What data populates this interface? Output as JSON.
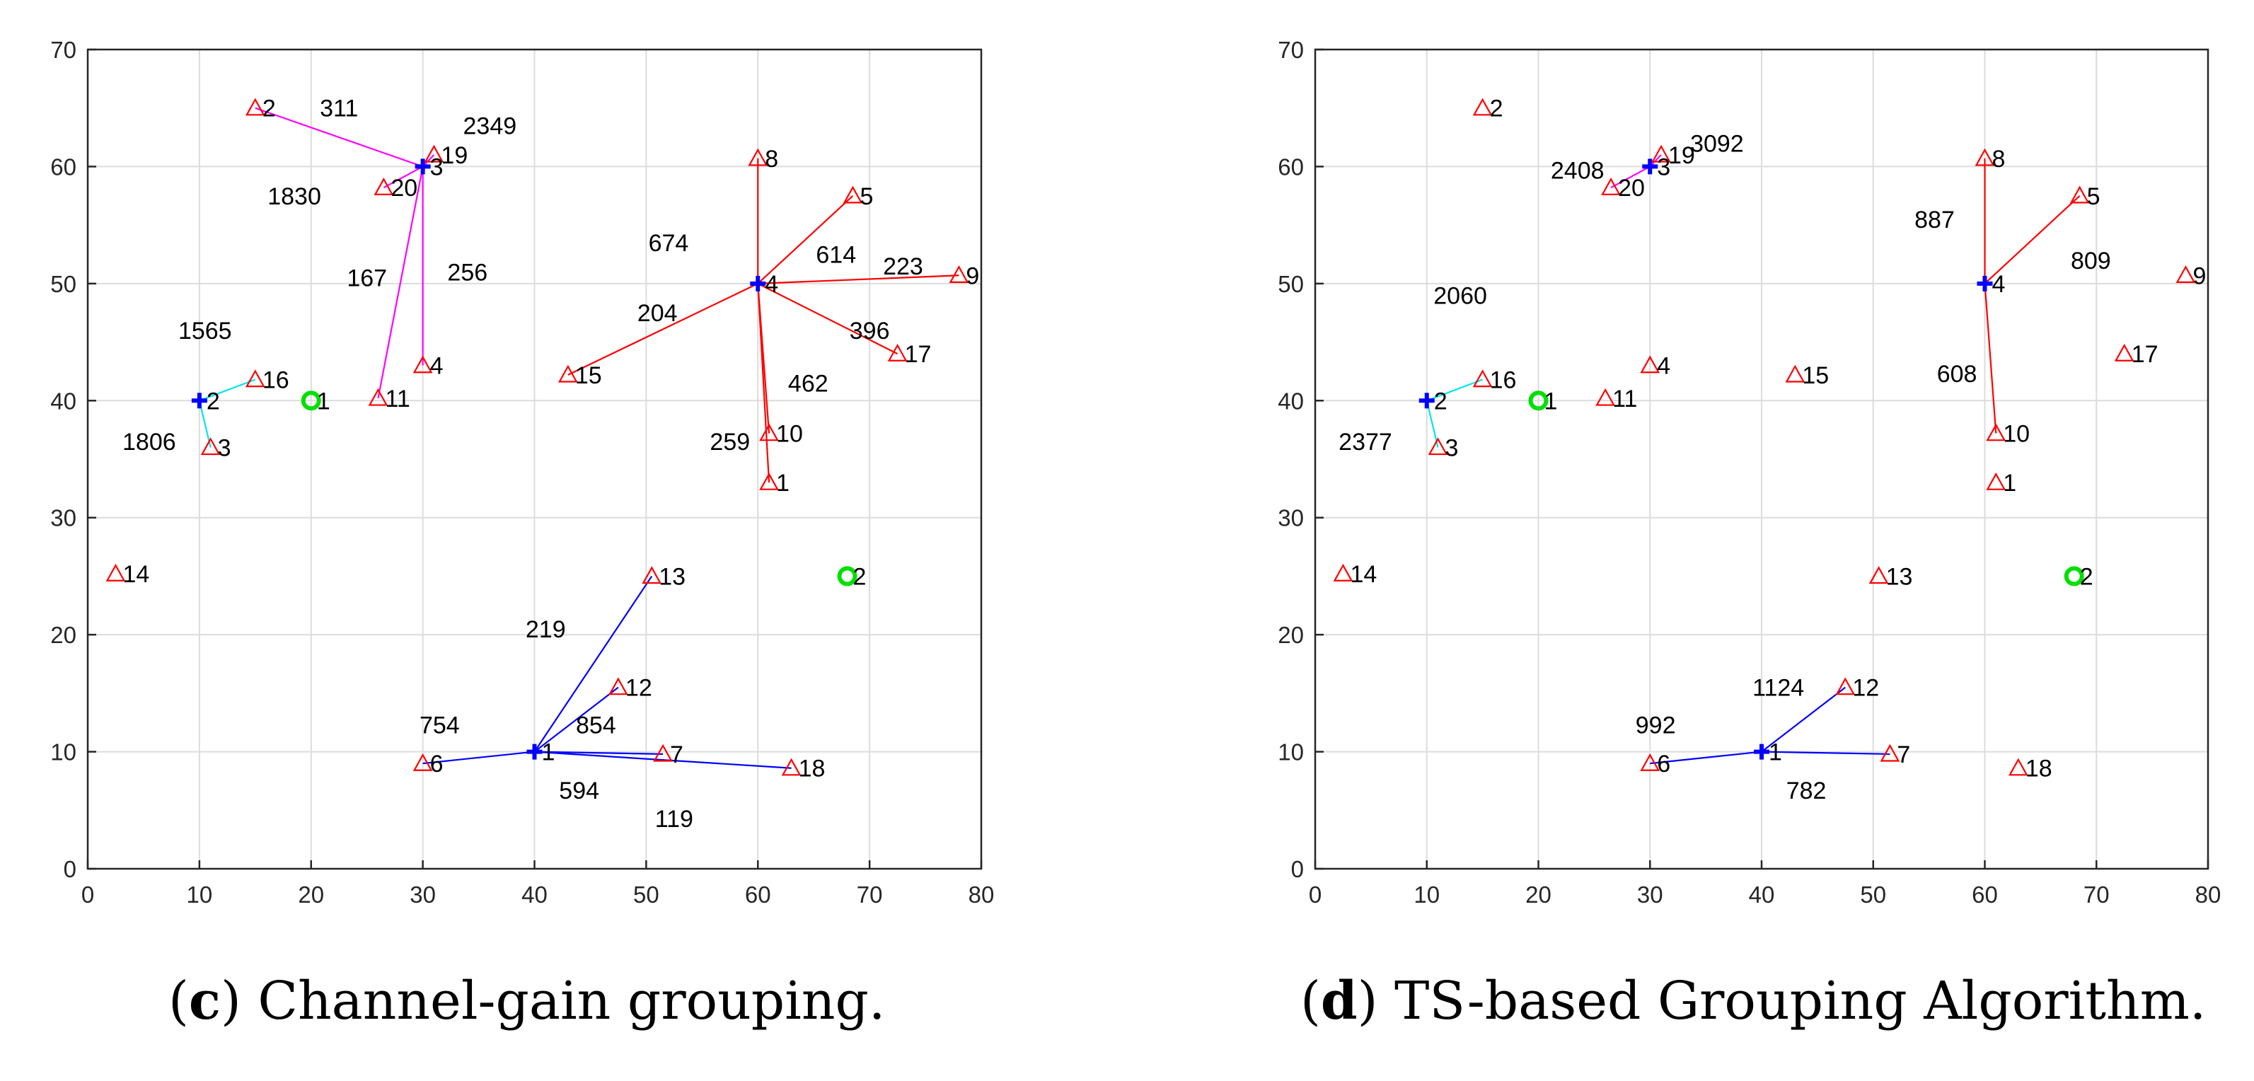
{
  "colors": {
    "user": "#ff0000",
    "bs": "#00e000",
    "head_point": "#0000ff",
    "groups": [
      "#0000ff",
      "#00e5ee",
      "#ff00ff",
      "#ff0000"
    ],
    "grid": "#dcdcdc",
    "axis": "#262626"
  },
  "chart_data": [
    {
      "id": "c",
      "type": "scatter",
      "title": "",
      "xlabel": "",
      "ylabel": "",
      "xlim": [
        0,
        80
      ],
      "ylim": [
        0,
        70
      ],
      "xticks": [
        0,
        10,
        20,
        30,
        40,
        50,
        60,
        70,
        80
      ],
      "yticks": [
        0,
        10,
        20,
        30,
        40,
        50,
        60,
        70
      ],
      "grid": true,
      "users": [
        {
          "label": "1",
          "x": 61,
          "y": 33
        },
        {
          "label": "2",
          "x": 15,
          "y": 65
        },
        {
          "label": "3",
          "x": 11,
          "y": 36
        },
        {
          "label": "4",
          "x": 30,
          "y": 43
        },
        {
          "label": "5",
          "x": 68.5,
          "y": 57.5
        },
        {
          "label": "6",
          "x": 30,
          "y": 9
        },
        {
          "label": "7",
          "x": 51.5,
          "y": 9.8
        },
        {
          "label": "8",
          "x": 60,
          "y": 60.7
        },
        {
          "label": "9",
          "x": 78,
          "y": 50.7
        },
        {
          "label": "10",
          "x": 61,
          "y": 37.2
        },
        {
          "label": "11",
          "x": 26,
          "y": 40.2
        },
        {
          "label": "12",
          "x": 47.5,
          "y": 15.5
        },
        {
          "label": "13",
          "x": 50.5,
          "y": 25
        },
        {
          "label": "14",
          "x": 2.5,
          "y": 25.2
        },
        {
          "label": "15",
          "x": 43,
          "y": 42.2
        },
        {
          "label": "16",
          "x": 15,
          "y": 41.8
        },
        {
          "label": "17",
          "x": 72.5,
          "y": 44
        },
        {
          "label": "18",
          "x": 63,
          "y": 8.6
        },
        {
          "label": "19",
          "x": 31,
          "y": 61
        },
        {
          "label": "20",
          "x": 26.5,
          "y": 58.2
        }
      ],
      "base_stations": [
        {
          "label": "1",
          "x": 20,
          "y": 40
        },
        {
          "label": "2",
          "x": 68,
          "y": 25
        }
      ],
      "group_heads": [
        {
          "label": "1",
          "x": 40,
          "y": 10,
          "color": 0
        },
        {
          "label": "2",
          "x": 10,
          "y": 40,
          "color": 1
        },
        {
          "label": "3",
          "x": 30,
          "y": 60,
          "color": 2
        },
        {
          "label": "4",
          "x": 60,
          "y": 50,
          "color": 3
        }
      ],
      "links": [
        {
          "head": 0,
          "users": [
            "6",
            "7",
            "12",
            "13",
            "18"
          ]
        },
        {
          "head": 1,
          "users": [
            "3",
            "16"
          ]
        },
        {
          "head": 2,
          "users": [
            "2",
            "4",
            "11",
            "19",
            "20"
          ]
        },
        {
          "head": 3,
          "users": [
            "1",
            "5",
            "8",
            "9",
            "10",
            "15",
            "17"
          ]
        }
      ],
      "annotations": [
        {
          "text": "311",
          "x": 22.5,
          "y": 65
        },
        {
          "text": "2349",
          "x": 36,
          "y": 63.5
        },
        {
          "text": "1830",
          "x": 18.5,
          "y": 57.5
        },
        {
          "text": "167",
          "x": 25,
          "y": 50.5
        },
        {
          "text": "256",
          "x": 34,
          "y": 51
        },
        {
          "text": "1565",
          "x": 10.5,
          "y": 46
        },
        {
          "text": "1806",
          "x": 5.5,
          "y": 36.5
        },
        {
          "text": "674",
          "x": 52,
          "y": 53.5
        },
        {
          "text": "614",
          "x": 67,
          "y": 52.5
        },
        {
          "text": "223",
          "x": 73,
          "y": 51.5
        },
        {
          "text": "204",
          "x": 51,
          "y": 47.5
        },
        {
          "text": "396",
          "x": 70,
          "y": 46
        },
        {
          "text": "462",
          "x": 64.5,
          "y": 41.5
        },
        {
          "text": "259",
          "x": 57.5,
          "y": 36.5
        },
        {
          "text": "219",
          "x": 41,
          "y": 20.5
        },
        {
          "text": "754",
          "x": 31.5,
          "y": 12.3
        },
        {
          "text": "854",
          "x": 45.5,
          "y": 12.3
        },
        {
          "text": "594",
          "x": 44,
          "y": 6.7
        },
        {
          "text": "119",
          "x": 52.5,
          "y": 4.3
        }
      ]
    },
    {
      "id": "d",
      "type": "scatter",
      "title": "",
      "xlabel": "",
      "ylabel": "",
      "xlim": [
        0,
        80
      ],
      "ylim": [
        0,
        70
      ],
      "xticks": [
        0,
        10,
        20,
        30,
        40,
        50,
        60,
        70,
        80
      ],
      "yticks": [
        0,
        10,
        20,
        30,
        40,
        50,
        60,
        70
      ],
      "grid": true,
      "users": [
        {
          "label": "1",
          "x": 61,
          "y": 33
        },
        {
          "label": "2",
          "x": 15,
          "y": 65
        },
        {
          "label": "3",
          "x": 11,
          "y": 36
        },
        {
          "label": "4",
          "x": 30,
          "y": 43
        },
        {
          "label": "5",
          "x": 68.5,
          "y": 57.5
        },
        {
          "label": "6",
          "x": 30,
          "y": 9
        },
        {
          "label": "7",
          "x": 51.5,
          "y": 9.8
        },
        {
          "label": "8",
          "x": 60,
          "y": 60.7
        },
        {
          "label": "9",
          "x": 78,
          "y": 50.7
        },
        {
          "label": "10",
          "x": 61,
          "y": 37.2
        },
        {
          "label": "11",
          "x": 26,
          "y": 40.2
        },
        {
          "label": "12",
          "x": 47.5,
          "y": 15.5
        },
        {
          "label": "13",
          "x": 50.5,
          "y": 25
        },
        {
          "label": "14",
          "x": 2.5,
          "y": 25.2
        },
        {
          "label": "15",
          "x": 43,
          "y": 42.2
        },
        {
          "label": "16",
          "x": 15,
          "y": 41.8
        },
        {
          "label": "17",
          "x": 72.5,
          "y": 44
        },
        {
          "label": "18",
          "x": 63,
          "y": 8.6
        },
        {
          "label": "19",
          "x": 31,
          "y": 61
        },
        {
          "label": "20",
          "x": 26.5,
          "y": 58.2
        }
      ],
      "base_stations": [
        {
          "label": "1",
          "x": 20,
          "y": 40
        },
        {
          "label": "2",
          "x": 68,
          "y": 25
        }
      ],
      "group_heads": [
        {
          "label": "1",
          "x": 40,
          "y": 10,
          "color": 0
        },
        {
          "label": "2",
          "x": 10,
          "y": 40,
          "color": 1
        },
        {
          "label": "3",
          "x": 30,
          "y": 60,
          "color": 2
        },
        {
          "label": "4",
          "x": 60,
          "y": 50,
          "color": 3
        }
      ],
      "links": [
        {
          "head": 0,
          "users": [
            "6",
            "7",
            "12"
          ]
        },
        {
          "head": 1,
          "users": [
            "3",
            "16"
          ]
        },
        {
          "head": 2,
          "users": [
            "19",
            "20"
          ]
        },
        {
          "head": 3,
          "users": [
            "5",
            "8",
            "10"
          ]
        }
      ],
      "annotations": [
        {
          "text": "3092",
          "x": 36,
          "y": 62
        },
        {
          "text": "2408",
          "x": 23.5,
          "y": 59.7
        },
        {
          "text": "887",
          "x": 55.5,
          "y": 55.5
        },
        {
          "text": "809",
          "x": 69.5,
          "y": 52
        },
        {
          "text": "2060",
          "x": 13,
          "y": 49
        },
        {
          "text": "608",
          "x": 57.5,
          "y": 42.3
        },
        {
          "text": "2377",
          "x": 4.5,
          "y": 36.5
        },
        {
          "text": "1124",
          "x": 41.5,
          "y": 15.5
        },
        {
          "text": "992",
          "x": 30.5,
          "y": 12.3
        },
        {
          "text": "782",
          "x": 44,
          "y": 6.7
        }
      ]
    }
  ],
  "captions": {
    "c": {
      "letter": "c",
      "text": " Channel-gain grouping."
    },
    "d": {
      "letter": "d",
      "text": " TS-based Grouping Algorithm."
    }
  }
}
